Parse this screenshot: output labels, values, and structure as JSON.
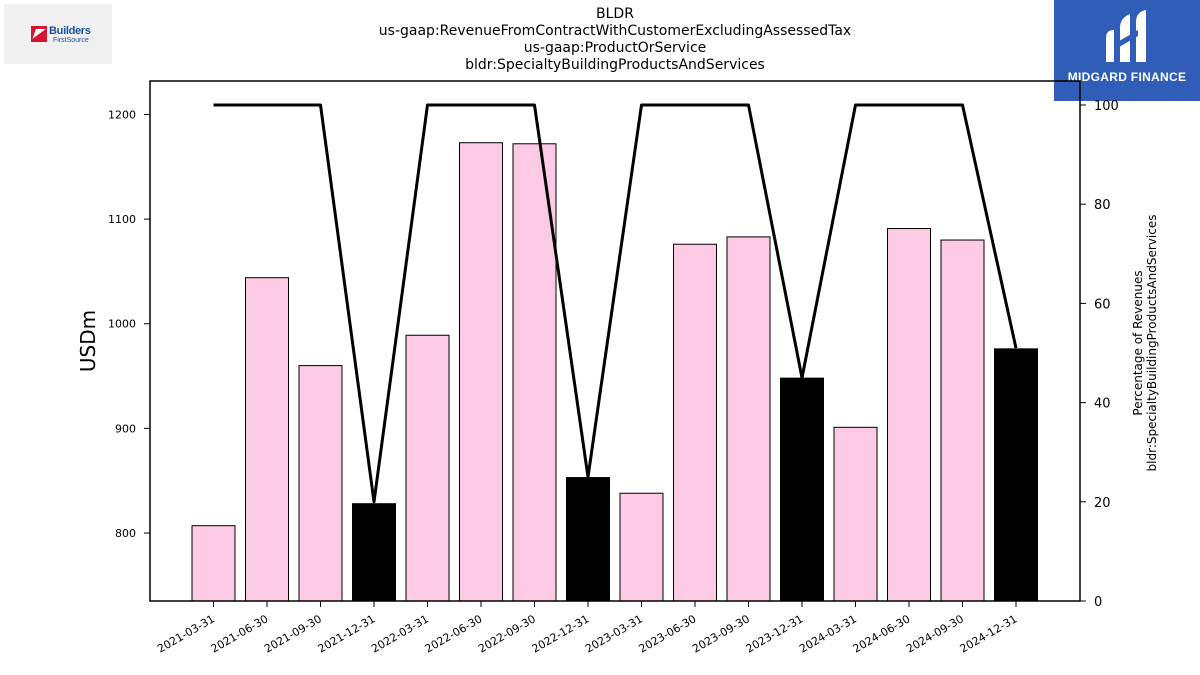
{
  "title_lines": [
    "BLDR",
    "us-gaap:RevenueFromContractWithCustomerExcludingAssessedTax",
    "us-gaap:ProductOrService",
    "bldr:SpecialtyBuildingProductsAndServices"
  ],
  "logos": {
    "left_line1": "Builders",
    "left_line2": "FirstSource",
    "right_label": "MIDGARD FINANCE"
  },
  "colors": {
    "bar_regular": "#fccae4",
    "bar_q4": "#000000",
    "line": "#000000",
    "brand_blue": "#2f5db8"
  },
  "chart_data": {
    "type": "bar",
    "categories": [
      "2021-03-31",
      "2021-06-30",
      "2021-09-30",
      "2021-12-31",
      "2022-03-31",
      "2022-06-30",
      "2022-09-30",
      "2022-12-31",
      "2023-03-31",
      "2023-06-30",
      "2023-09-30",
      "2023-12-31",
      "2024-03-31",
      "2024-06-30",
      "2024-09-30",
      "2024-12-31"
    ],
    "series": [
      {
        "values": [
          807,
          1044,
          960,
          828,
          989,
          1173,
          1172,
          853,
          838,
          1076,
          1083,
          948,
          901,
          1091,
          1080,
          976
        ],
        "highlight_q4": true
      },
      {
        "type": "line",
        "axis": "right",
        "values": [
          100,
          100,
          100,
          20,
          100,
          100,
          100,
          25,
          100,
          100,
          100,
          45,
          100,
          100,
          100,
          51
        ]
      }
    ],
    "ylabel": "USDm",
    "y2label_lines": [
      "Percentage of Revenues",
      "bldr:SpecialtyBuildingProductsAndServices"
    ],
    "ylim": [
      735,
      1232
    ],
    "y2lim": [
      0,
      100
    ],
    "yticks": [
      800,
      900,
      1000,
      1100,
      1200
    ],
    "y2ticks": [
      0,
      20,
      40,
      60,
      80,
      100
    ],
    "grid": false,
    "legend": "none"
  }
}
